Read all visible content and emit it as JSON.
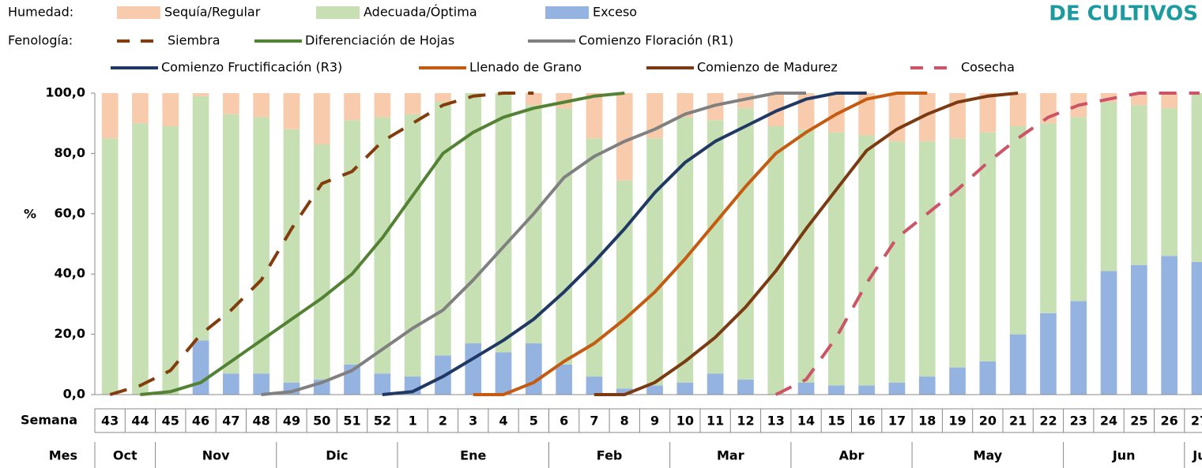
{
  "chart_data": {
    "type": "bar",
    "stacked": true,
    "title": "DE CULTIVOS",
    "legend_titles": {
      "bars": "Humedad:",
      "lines": "Fenología:"
    },
    "x_label": "Semana",
    "month_label": "Mes",
    "y_label": "%",
    "categories": [
      "43",
      "44",
      "45",
      "46",
      "47",
      "48",
      "49",
      "50",
      "51",
      "52",
      "1",
      "2",
      "3",
      "4",
      "5",
      "6",
      "7",
      "8",
      "9",
      "10",
      "11",
      "12",
      "13",
      "14",
      "15",
      "16",
      "17",
      "18",
      "19",
      "20",
      "21",
      "22",
      "23",
      "24",
      "25",
      "26",
      "27"
    ],
    "months": [
      "Oct",
      "Oct",
      "Nov",
      "Nov",
      "Nov",
      "Nov",
      "Dic",
      "Dic",
      "Dic",
      "Dic",
      "Ene",
      "Ene",
      "Ene",
      "Ene",
      "Ene",
      "Feb",
      "Feb",
      "Feb",
      "Feb",
      "Mar",
      "Mar",
      "Mar",
      "Mar",
      "Abr",
      "Abr",
      "Abr",
      "Abr",
      "May",
      "May",
      "May",
      "May",
      "May",
      "Jun",
      "Jun",
      "Jun",
      "Jun",
      "Ju"
    ],
    "ylim": [
      0,
      100
    ],
    "yticks": [
      {
        "value": 0,
        "label": "0,0"
      },
      {
        "value": 20,
        "label": "20,0"
      },
      {
        "value": 40,
        "label": "40,0"
      },
      {
        "value": 60,
        "label": "60,0"
      },
      {
        "value": 80,
        "label": "80,0"
      },
      {
        "value": 100,
        "label": "100,0"
      }
    ],
    "series": [
      {
        "name": "Exceso",
        "type": "bar",
        "color": "#95b3e0",
        "values": [
          0,
          0,
          0,
          18,
          7,
          7,
          4,
          5,
          10,
          7,
          6,
          13,
          17,
          14,
          17,
          10,
          6,
          2,
          3,
          4,
          7,
          5,
          0,
          4,
          3,
          3,
          4,
          6,
          9,
          11,
          20,
          27,
          31,
          41,
          43,
          46,
          44
        ]
      },
      {
        "name": "Adecuada/Óptima",
        "type": "bar",
        "color": "#c6e0b4",
        "values": [
          85,
          90,
          89,
          81,
          86,
          85,
          84,
          78,
          81,
          85,
          87,
          84,
          83,
          86,
          79,
          85,
          79,
          69,
          82,
          88,
          84,
          90,
          89,
          84,
          84,
          83,
          80,
          78,
          76,
          76,
          69,
          63,
          61,
          56,
          53,
          49,
          56
        ]
      },
      {
        "name": "Sequía/Regular",
        "type": "bar",
        "color": "#f8cbad",
        "values": [
          15,
          10,
          11,
          1,
          7,
          8,
          12,
          17,
          9,
          8,
          7,
          3,
          0,
          0,
          4,
          5,
          15,
          29,
          15,
          8,
          9,
          5,
          11,
          12,
          13,
          14,
          16,
          16,
          15,
          13,
          11,
          10,
          8,
          3,
          4,
          5,
          0
        ]
      },
      {
        "name": "Siembra",
        "type": "line",
        "color": "#843c0c",
        "dashed": true,
        "values": [
          0,
          3,
          8,
          20,
          28,
          38,
          55,
          70,
          74,
          84,
          90,
          96,
          99,
          100,
          100,
          null,
          null,
          null,
          null,
          null,
          null,
          null,
          null,
          null,
          null,
          null,
          null,
          null,
          null,
          null,
          null,
          null,
          null,
          null,
          null,
          null,
          null
        ]
      },
      {
        "name": "Diferenciación de Hojas",
        "type": "line",
        "color": "#548235",
        "dashed": false,
        "values": [
          null,
          0,
          1,
          4,
          11,
          18,
          25,
          32,
          40,
          52,
          66,
          80,
          87,
          92,
          95,
          97,
          99,
          100,
          null,
          null,
          null,
          null,
          null,
          null,
          null,
          null,
          null,
          null,
          null,
          null,
          null,
          null,
          null,
          null,
          null,
          null,
          null
        ]
      },
      {
        "name": "Comienzo Floración (R1)",
        "type": "line",
        "color": "#808080",
        "dashed": false,
        "values": [
          null,
          null,
          null,
          null,
          null,
          0,
          1,
          4,
          8,
          15,
          22,
          28,
          38,
          49,
          60,
          72,
          79,
          84,
          88,
          93,
          96,
          98,
          100,
          100,
          null,
          null,
          null,
          null,
          null,
          null,
          null,
          null,
          null,
          null,
          null,
          null,
          null
        ]
      },
      {
        "name": "Comienzo Fructificación (R3)",
        "type": "line",
        "color": "#1f3864",
        "dashed": false,
        "values": [
          null,
          null,
          null,
          null,
          null,
          null,
          null,
          null,
          null,
          0,
          1,
          6,
          12,
          18,
          25,
          34,
          44,
          55,
          67,
          77,
          84,
          89,
          94,
          98,
          100,
          100,
          null,
          null,
          null,
          null,
          null,
          null,
          null,
          null,
          null,
          null,
          null
        ]
      },
      {
        "name": "Llenado de Grano",
        "type": "line",
        "color": "#c55a11",
        "dashed": false,
        "values": [
          null,
          null,
          null,
          null,
          null,
          null,
          null,
          null,
          null,
          null,
          null,
          null,
          0,
          0,
          4,
          11,
          17,
          25,
          34,
          45,
          57,
          69,
          80,
          87,
          93,
          98,
          100,
          100,
          null,
          null,
          null,
          null,
          null,
          null,
          null,
          null,
          null
        ]
      },
      {
        "name": "Comienzo de Madurez",
        "type": "line",
        "color": "#7b3a12",
        "dashed": false,
        "values": [
          null,
          null,
          null,
          null,
          null,
          null,
          null,
          null,
          null,
          null,
          null,
          null,
          null,
          null,
          null,
          null,
          0,
          0,
          4,
          11,
          19,
          29,
          41,
          55,
          68,
          81,
          88,
          93,
          97,
          99,
          100,
          null,
          null,
          null,
          null,
          null,
          null
        ]
      },
      {
        "name": "Cosecha",
        "type": "line",
        "color": "#cc5466",
        "dashed": true,
        "values": [
          null,
          null,
          null,
          null,
          null,
          null,
          null,
          null,
          null,
          null,
          null,
          null,
          null,
          null,
          null,
          null,
          null,
          null,
          null,
          null,
          null,
          null,
          0,
          5,
          19,
          37,
          52,
          60,
          68,
          77,
          85,
          92,
          96,
          98,
          100,
          100,
          100
        ]
      }
    ]
  }
}
